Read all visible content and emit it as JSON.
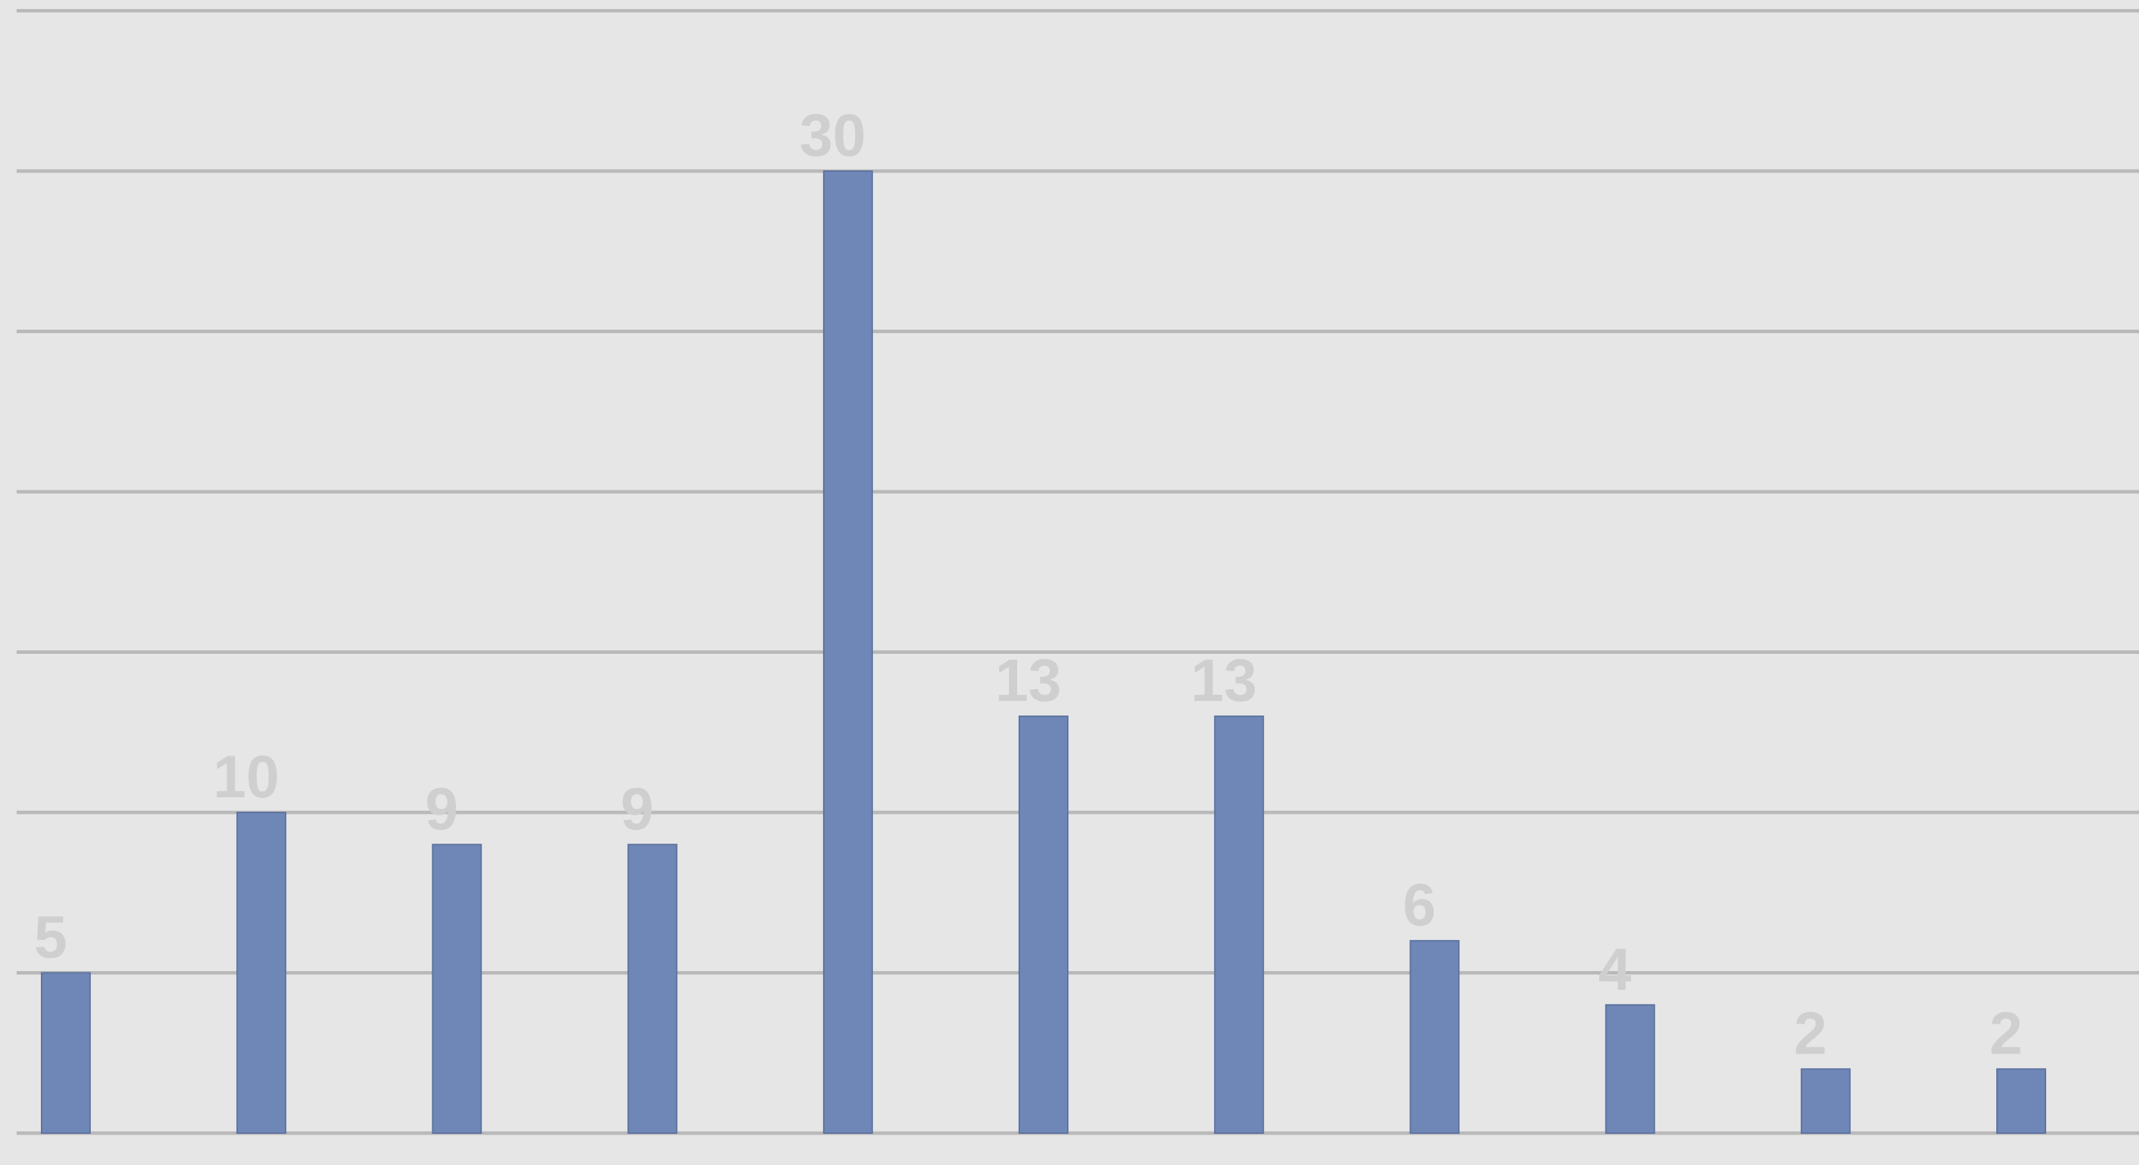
{
  "chart_data": {
    "type": "bar",
    "title": "",
    "xlabel": "",
    "ylabel": "",
    "categories": [
      "",
      "",
      "",
      "",
      "",
      "",
      "",
      "",
      "",
      "",
      ""
    ],
    "series": [
      {
        "values": [
          5,
          10,
          9,
          9,
          30,
          13,
          13,
          6,
          4,
          2,
          2
        ]
      }
    ],
    "ylim": [
      0,
      35
    ],
    "ytick_step": 5,
    "grid": true,
    "legend": "none",
    "data_labels": true,
    "colors": {
      "bar": "#6f87b6",
      "bar_edge": "#5c72a0",
      "grid": "#b9b9b9",
      "data_label": "#cfcfcf",
      "tick_label": "#9a9a9a",
      "background": "#e6e6e6"
    }
  }
}
